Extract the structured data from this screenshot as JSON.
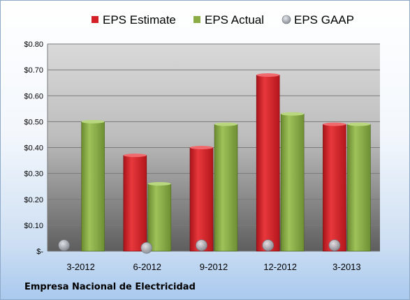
{
  "company_name": "Empresa Nacional de Electricidad",
  "colors": {
    "estimate": "#d42027",
    "actual": "#8bab45",
    "gaap": "#b9bec6"
  },
  "chart_data": {
    "type": "bar",
    "title": "",
    "xlabel": "",
    "ylabel": "",
    "categories": [
      "3-2012",
      "6-2012",
      "9-2012",
      "12-2012",
      "3-2013"
    ],
    "series": [
      {
        "name": "EPS Estimate",
        "values": [
          null,
          0.37,
          0.4,
          0.68,
          0.49
        ]
      },
      {
        "name": "EPS Actual",
        "values": [
          0.5,
          0.26,
          0.49,
          0.53,
          0.49
        ]
      },
      {
        "name": "EPS GAAP",
        "values": [
          0.02,
          0.01,
          0.02,
          0.02,
          0.02
        ]
      }
    ],
    "ylim": [
      0,
      0.8
    ],
    "yticks": [
      0,
      0.1,
      0.2,
      0.3,
      0.4,
      0.5,
      0.6,
      0.7,
      0.8
    ],
    "ytick_labels": [
      "$-",
      "$0.10",
      "$0.20",
      "$0.30",
      "$0.40",
      "$0.50",
      "$0.60",
      "$0.70",
      "$0.80"
    ],
    "legend_position": "top",
    "grid": true
  }
}
